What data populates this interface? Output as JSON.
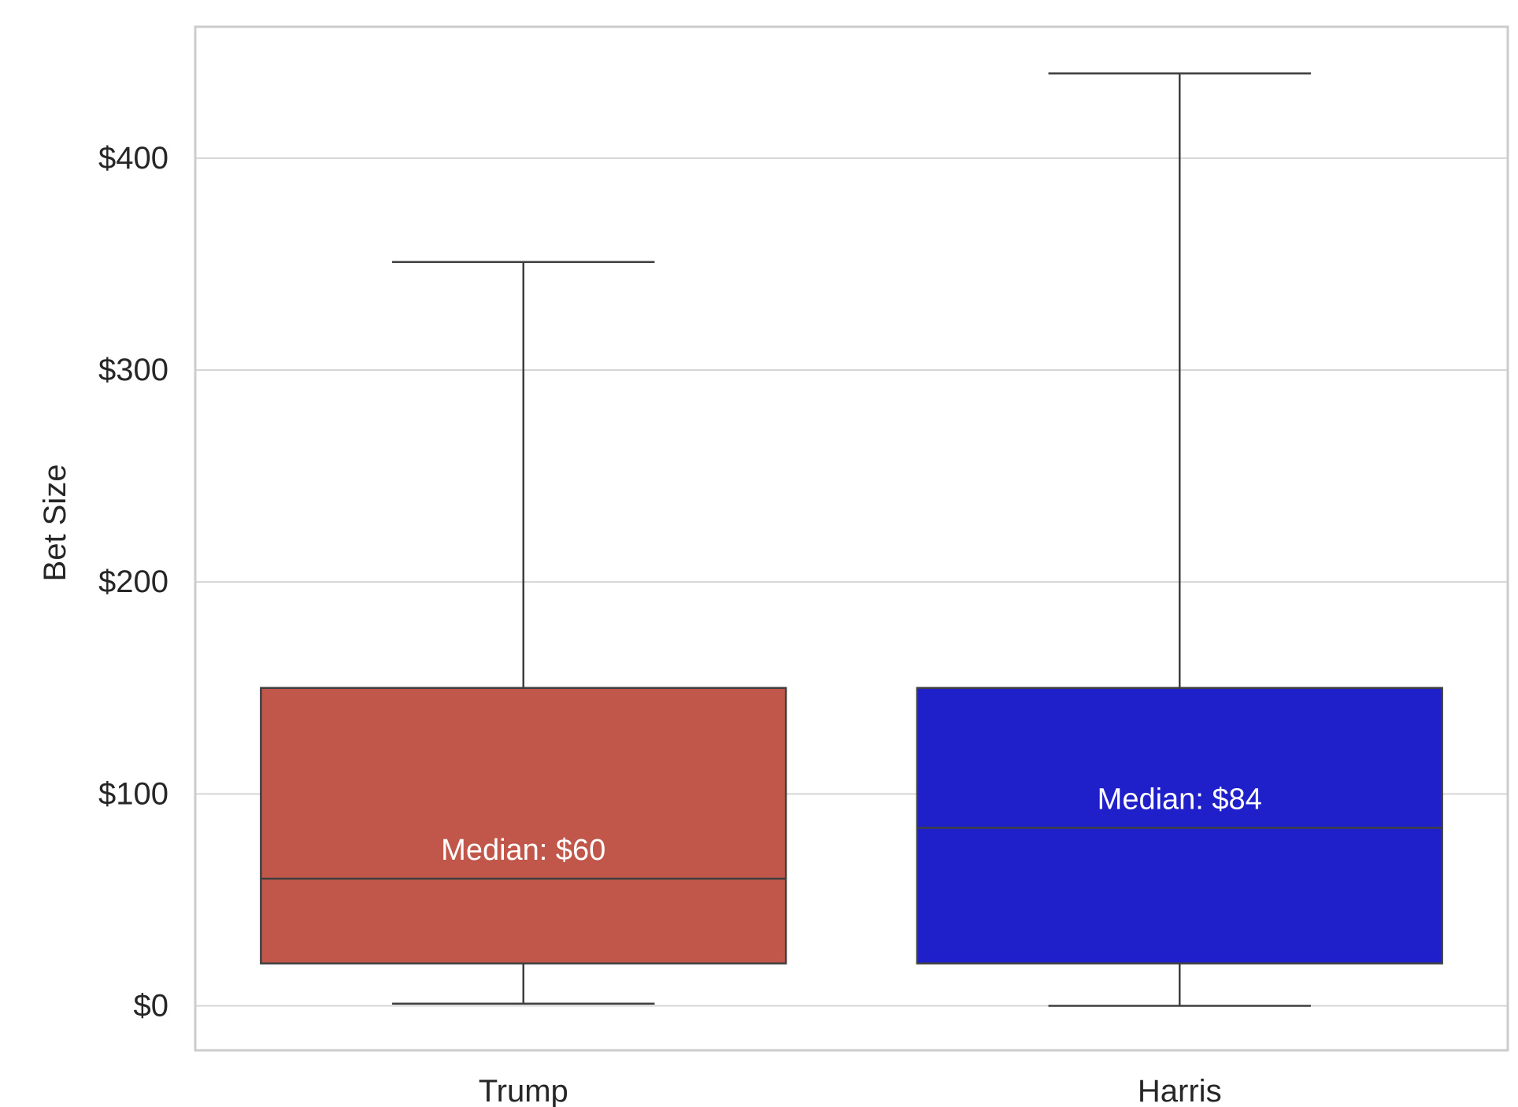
{
  "chart_data": {
    "type": "box",
    "title": "",
    "xlabel": "",
    "ylabel": "Bet Size",
    "ylim": [
      -21,
      462
    ],
    "grid": true,
    "y_ticks": [
      {
        "value": 0,
        "label": "$0"
      },
      {
        "value": 100,
        "label": "$100"
      },
      {
        "value": 200,
        "label": "$200"
      },
      {
        "value": 300,
        "label": "$300"
      },
      {
        "value": 400,
        "label": "$400"
      }
    ],
    "categories": [
      "Trump",
      "Harris"
    ],
    "boxes": [
      {
        "category": "Trump",
        "color": "#c0574a",
        "whisker_low": 1,
        "q1": 20,
        "median": 60,
        "q3": 150,
        "whisker_high": 351,
        "median_label": "Median: $60"
      },
      {
        "category": "Harris",
        "color": "#1f20c9",
        "whisker_low": 0,
        "q1": 20,
        "median": 84,
        "q3": 150,
        "whisker_high": 440,
        "median_label": "Median: $84"
      }
    ],
    "colors": {
      "gridline": "#d5d5d5",
      "frame": "#cccccc",
      "box_edge": "#3f3f3f",
      "text": "#262626"
    }
  }
}
